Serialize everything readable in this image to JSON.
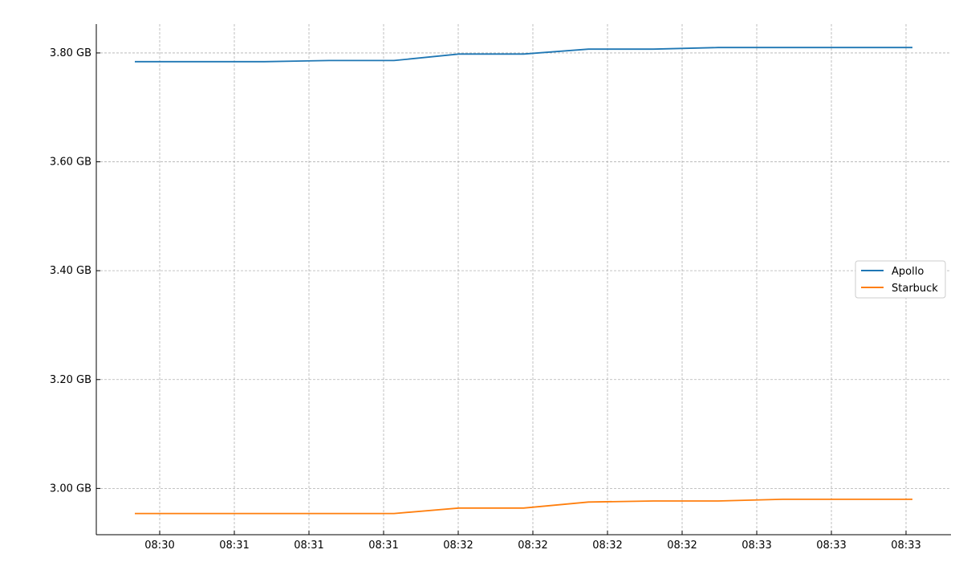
{
  "chart_data": {
    "type": "line",
    "title": "",
    "xlabel": "",
    "ylabel": "",
    "grid": true,
    "legend_position": "center-right",
    "x_tick_labels": [
      "08:30",
      "08:31",
      "08:31",
      "08:31",
      "08:32",
      "08:32",
      "08:32",
      "08:32",
      "08:33",
      "08:33",
      "08:33"
    ],
    "y_tick_labels": [
      "3.00 GB",
      "3.20 GB",
      "3.40 GB",
      "3.60 GB",
      "3.80 GB"
    ],
    "y_ticks": [
      3.0,
      3.2,
      3.4,
      3.6,
      3.8
    ],
    "ylim": [
      2.915,
      3.853
    ],
    "series": [
      {
        "name": "Apollo",
        "color": "#1f77b4",
        "values": [
          3.784,
          3.784,
          3.784,
          3.786,
          3.786,
          3.798,
          3.798,
          3.807,
          3.807,
          3.81,
          3.81,
          3.81,
          3.81
        ]
      },
      {
        "name": "Starbuck",
        "color": "#ff7f0e",
        "values": [
          2.954,
          2.954,
          2.954,
          2.954,
          2.954,
          2.964,
          2.964,
          2.975,
          2.977,
          2.977,
          2.98,
          2.98,
          2.98
        ]
      }
    ]
  }
}
